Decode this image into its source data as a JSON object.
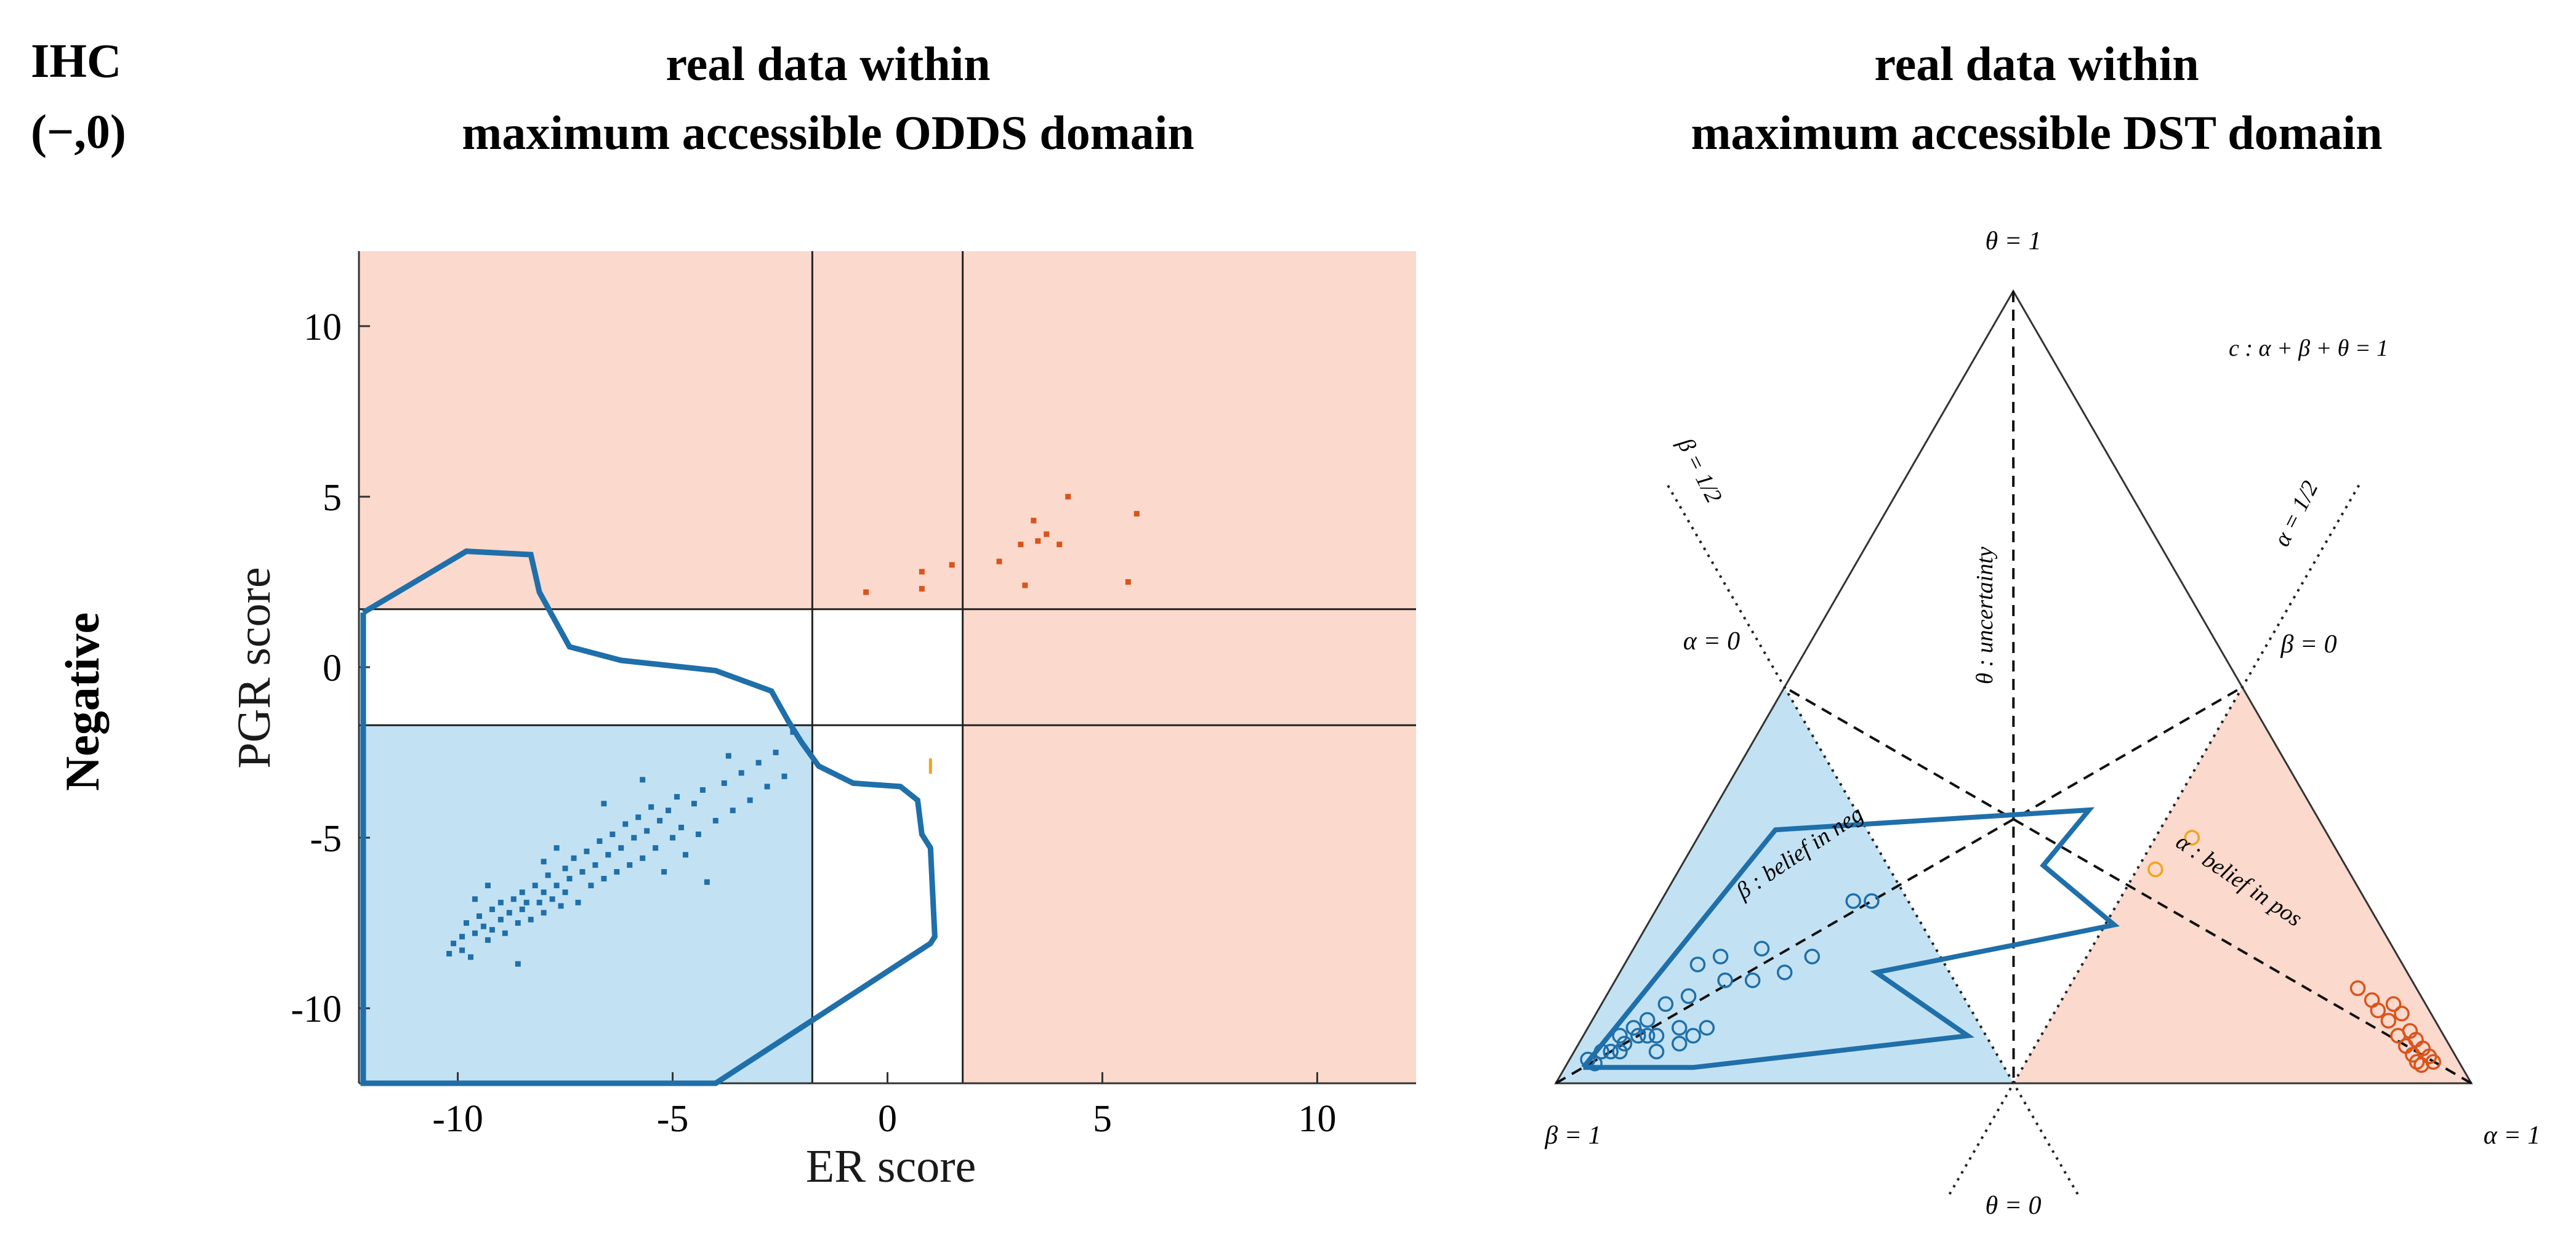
{
  "header": {
    "ihc_label": "IHC",
    "ihc_value": "(−,0)",
    "row_label": "Negative",
    "left_title_1": "real data within",
    "left_title_2": "maximum accessible ODDS domain",
    "right_title_1": "real data within",
    "right_title_2": "maximum accessible DST domain"
  },
  "colors": {
    "blue_region": "#c2e2f3",
    "red_region": "#fbd9cd",
    "blue_series": "#1f6faa",
    "red_series": "#d9541c",
    "orange_series": "#f0a51c"
  },
  "chart_data": [
    {
      "type": "scatter",
      "xlabel": "ER score",
      "ylabel": "PGR score",
      "xlim": [
        -12.3,
        12.3
      ],
      "ylim": [
        -12.2,
        12.2
      ],
      "xticks": [
        "-10",
        "-5",
        "0",
        "5",
        "10"
      ],
      "yticks": [
        "10",
        "5",
        "0",
        "-5",
        "-10"
      ],
      "thresholds": {
        "x": [
          -1.75,
          1.75
        ],
        "y": [
          -1.7,
          1.7
        ]
      },
      "regions": [
        {
          "color": "blue",
          "x": [
            -12.3,
            -1.75
          ],
          "y": [
            -12.2,
            -1.7
          ]
        },
        {
          "color": "red",
          "x": [
            -12.3,
            12.3
          ],
          "y": [
            1.7,
            12.2
          ]
        },
        {
          "color": "red",
          "x": [
            1.75,
            12.3
          ],
          "y": [
            -12.2,
            1.7
          ]
        }
      ],
      "boundary": [
        [
          -12.2,
          1.6
        ],
        [
          -9.8,
          3.4
        ],
        [
          -8.3,
          3.3
        ],
        [
          -8.1,
          2.2
        ],
        [
          -7.4,
          0.6
        ],
        [
          -6.2,
          0.2
        ],
        [
          -4,
          -0.1
        ],
        [
          -2.7,
          -0.7
        ],
        [
          -2.3,
          -1.6
        ],
        [
          -2.0,
          -2.2
        ],
        [
          -1.6,
          -2.9
        ],
        [
          -0.8,
          -3.4
        ],
        [
          0.3,
          -3.5
        ],
        [
          0.7,
          -3.9
        ],
        [
          0.8,
          -4.9
        ],
        [
          1.0,
          -5.3
        ],
        [
          1.1,
          -7.9
        ],
        [
          1.0,
          -8.1
        ],
        [
          -4,
          -12.2
        ],
        [
          -12.2,
          -12.2
        ],
        [
          -12.2,
          1.6
        ]
      ],
      "series": [
        {
          "color": "red",
          "points": [
            [
              -0.5,
              2.2
            ],
            [
              0.8,
              2.3
            ],
            [
              0.8,
              2.8
            ],
            [
              1.5,
              3.0
            ],
            [
              2.6,
              3.1
            ],
            [
              3.2,
              2.4
            ],
            [
              3.1,
              3.6
            ],
            [
              3.4,
              4.3
            ],
            [
              3.5,
              3.7
            ],
            [
              3.7,
              3.9
            ],
            [
              4.0,
              3.6
            ],
            [
              4.2,
              5.0
            ],
            [
              5.6,
              2.5
            ],
            [
              5.8,
              4.5
            ]
          ]
        },
        {
          "color": "orange",
          "points": [
            [
              1.0,
              -2.8
            ],
            [
              1.0,
              -3.0
            ]
          ]
        },
        {
          "color": "blue",
          "points": [
            [
              -10.2,
              -8.4
            ],
            [
              -10.1,
              -8.1
            ],
            [
              -9.9,
              -8.3
            ],
            [
              -9.9,
              -7.9
            ],
            [
              -9.7,
              -8.5
            ],
            [
              -9.8,
              -7.5
            ],
            [
              -9.6,
              -7.8
            ],
            [
              -9.5,
              -7.3
            ],
            [
              -9.4,
              -7.6
            ],
            [
              -9.3,
              -8.0
            ],
            [
              -9.2,
              -7.1
            ],
            [
              -9.2,
              -7.7
            ],
            [
              -9.0,
              -7.4
            ],
            [
              -9.0,
              -6.9
            ],
            [
              -8.9,
              -7.8
            ],
            [
              -8.8,
              -7.2
            ],
            [
              -8.7,
              -6.8
            ],
            [
              -8.6,
              -7.5
            ],
            [
              -8.5,
              -6.6
            ],
            [
              -8.5,
              -7.1
            ],
            [
              -8.4,
              -6.9
            ],
            [
              -8.3,
              -7.4
            ],
            [
              -8.2,
              -6.4
            ],
            [
              -8.1,
              -6.9
            ],
            [
              -8.0,
              -7.2
            ],
            [
              -8.0,
              -6.6
            ],
            [
              -7.9,
              -6.1
            ],
            [
              -7.8,
              -6.8
            ],
            [
              -7.7,
              -6.4
            ],
            [
              -7.6,
              -7.0
            ],
            [
              -7.5,
              -5.9
            ],
            [
              -7.5,
              -6.6
            ],
            [
              -7.4,
              -6.2
            ],
            [
              -7.3,
              -5.6
            ],
            [
              -7.2,
              -6.9
            ],
            [
              -7.1,
              -6.0
            ],
            [
              -7.0,
              -5.4
            ],
            [
              -6.9,
              -6.4
            ],
            [
              -6.8,
              -5.8
            ],
            [
              -6.7,
              -5.1
            ],
            [
              -6.6,
              -6.2
            ],
            [
              -6.5,
              -5.5
            ],
            [
              -6.4,
              -4.9
            ],
            [
              -6.3,
              -6.0
            ],
            [
              -6.2,
              -5.3
            ],
            [
              -6.1,
              -4.6
            ],
            [
              -6.0,
              -5.8
            ],
            [
              -5.9,
              -5.0
            ],
            [
              -5.8,
              -4.4
            ],
            [
              -5.7,
              -5.6
            ],
            [
              -5.6,
              -4.8
            ],
            [
              -5.5,
              -4.1
            ],
            [
              -5.4,
              -5.3
            ],
            [
              -5.3,
              -4.5
            ],
            [
              -5.2,
              -6.0
            ],
            [
              -5.1,
              -4.2
            ],
            [
              -5.0,
              -5.0
            ],
            [
              -4.9,
              -3.8
            ],
            [
              -4.8,
              -4.7
            ],
            [
              -4.7,
              -5.5
            ],
            [
              -4.5,
              -4.0
            ],
            [
              -4.4,
              -4.9
            ],
            [
              -4.3,
              -3.6
            ],
            [
              -4.0,
              -4.5
            ],
            [
              -3.8,
              -3.4
            ],
            [
              -3.6,
              -4.2
            ],
            [
              -3.4,
              -3.1
            ],
            [
              -3.2,
              -3.9
            ],
            [
              -3.0,
              -2.8
            ],
            [
              -2.8,
              -3.5
            ],
            [
              -2.6,
              -2.5
            ],
            [
              -2.4,
              -3.2
            ],
            [
              -8.6,
              -8.7
            ],
            [
              -9.3,
              -6.4
            ],
            [
              -7.7,
              -5.3
            ],
            [
              -4.2,
              -6.3
            ],
            [
              -5.7,
              -3.3
            ],
            [
              -3.7,
              -2.6
            ],
            [
              -2.2,
              -1.9
            ],
            [
              -6.6,
              -4.0
            ],
            [
              -8.0,
              -5.7
            ],
            [
              -9.6,
              -6.8
            ]
          ]
        }
      ]
    },
    {
      "type": "scatter",
      "coordinate_system": "ternary",
      "labels": {
        "top": "θ = 1",
        "left": "β = 1",
        "right": "α = 1",
        "bottom": "θ = 0",
        "alpha_zero": "α = 0",
        "beta_zero": "β = 0",
        "beta_half": "β = 1/2",
        "alpha_half": "α = 1/2",
        "simplex": "c : α + β + θ = 1",
        "uncertainty": "θ : uncertainty",
        "belief_neg": "β : belief in neg",
        "belief_pos": "α : belief in pos"
      },
      "boundary": [
        [
          0.02,
          0.96,
          0.02
        ],
        [
          0.08,
          0.6,
          0.32
        ],
        [
          0.41,
          0.245,
          0.345
        ],
        [
          0.395,
          0.33,
          0.275
        ],
        [
          0.51,
          0.29,
          0.2
        ],
        [
          0.415,
          0.41,
          0.175
        ],
        [
          0.28,
          0.58,
          0.14
        ],
        [
          0.42,
          0.52,
          0.06
        ],
        [
          0.14,
          0.84,
          0.02
        ],
        [
          0.02,
          0.96,
          0.02
        ]
      ],
      "series": [
        {
          "color": "orange",
          "points": [
            [
              0.52,
              0.21,
              0.27
            ],
            [
              0.54,
              0.15,
              0.31
            ]
          ]
        },
        {
          "color": "red",
          "points": [
            [
              0.816,
              0.064,
              0.12
            ],
            [
              0.839,
              0.056,
              0.105
            ],
            [
              0.852,
              0.056,
              0.092
            ],
            [
              0.87,
              0.051,
              0.079
            ],
            [
              0.89,
              0.05,
              0.06
            ],
            [
              0.905,
              0.048,
              0.047
            ],
            [
              0.918,
              0.046,
              0.036
            ],
            [
              0.927,
              0.046,
              0.027
            ],
            [
              0.934,
              0.043,
              0.023
            ],
            [
              0.865,
              0.035,
              0.1
            ],
            [
              0.88,
              0.032,
              0.088
            ],
            [
              0.9,
              0.034,
              0.066
            ],
            [
              0.912,
              0.033,
              0.055
            ],
            [
              0.925,
              0.031,
              0.044
            ],
            [
              0.937,
              0.029,
              0.034
            ],
            [
              0.945,
              0.028,
              0.027
            ]
          ]
        },
        {
          "color": "blue",
          "points": [
            [
              0.03,
              0.945,
              0.025
            ],
            [
              0.04,
              0.92,
              0.04
            ],
            [
              0.05,
              0.9,
              0.05
            ],
            [
              0.06,
              0.88,
              0.06
            ],
            [
              0.07,
              0.87,
              0.06
            ],
            [
              0.05,
              0.91,
              0.04
            ],
            [
              0.08,
              0.86,
              0.06
            ],
            [
              0.09,
              0.87,
              0.04
            ],
            [
              0.1,
              0.83,
              0.07
            ],
            [
              0.11,
              0.84,
              0.05
            ],
            [
              0.12,
              0.82,
              0.06
            ],
            [
              0.13,
              0.8,
              0.07
            ],
            [
              0.06,
              0.86,
              0.08
            ],
            [
              0.07,
              0.83,
              0.1
            ],
            [
              0.09,
              0.8,
              0.11
            ],
            [
              0.08,
              0.77,
              0.15
            ],
            [
              0.12,
              0.75,
              0.13
            ],
            [
              0.15,
              0.72,
              0.13
            ],
            [
              0.1,
              0.74,
              0.16
            ],
            [
              0.14,
              0.69,
              0.17
            ],
            [
              0.18,
              0.68,
              0.14
            ],
            [
              0.2,
              0.64,
              0.16
            ],
            [
              0.21,
              0.56,
              0.23
            ],
            [
              0.23,
              0.54,
              0.23
            ],
            [
              0.04,
              0.9,
              0.06
            ],
            [
              0.03,
              0.93,
              0.04
            ],
            [
              0.02,
              0.95,
              0.03
            ],
            [
              0.05,
              0.88,
              0.07
            ]
          ]
        }
      ]
    }
  ]
}
